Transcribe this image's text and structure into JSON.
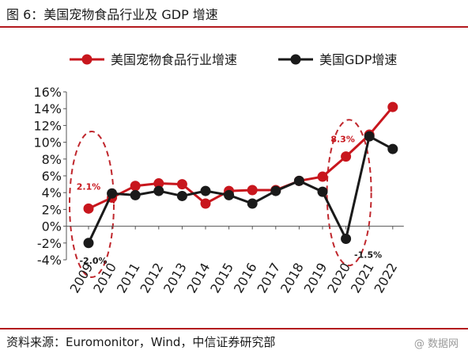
{
  "figure_title": "图 6：美国宠物食品行业及 GDP 增速",
  "source_note": "资料来源：Euromonitor，Wind，中信证券研究部",
  "watermark": "@ 数据网",
  "colors": {
    "pet": "#c8161d",
    "gdp": "#1a1a1a",
    "accent_rule": "#b3191e",
    "highlight": "#c0272d"
  },
  "chart_data": {
    "type": "line",
    "title": "",
    "xlabel": "",
    "ylabel": "",
    "x": [
      "2009",
      "2010",
      "2011",
      "2012",
      "2013",
      "2014",
      "2015",
      "2016",
      "2017",
      "2018",
      "2019",
      "2020",
      "2021",
      "2022"
    ],
    "y_ticks": [
      "16%",
      "14%",
      "12%",
      "10%",
      "8%",
      "6%",
      "4%",
      "2%",
      "0%",
      "-2%",
      "-4%"
    ],
    "ylim": [
      -4,
      16
    ],
    "grid": false,
    "legend_position": "top",
    "series": [
      {
        "name": "美国宠物食品行业增速",
        "color": "#c8161d",
        "values": [
          2.1,
          3.4,
          4.8,
          5.1,
          5.0,
          2.7,
          4.2,
          4.3,
          4.3,
          5.4,
          5.9,
          8.3,
          10.9,
          14.2
        ]
      },
      {
        "name": "美国GDP增速",
        "color": "#1a1a1a",
        "values": [
          -2.0,
          3.9,
          3.7,
          4.2,
          3.6,
          4.2,
          3.7,
          2.7,
          4.2,
          5.4,
          4.1,
          -1.5,
          10.7,
          9.2
        ]
      }
    ],
    "annotations": [
      {
        "text": "2.1%",
        "x": "2009",
        "series": 0,
        "color": "#c8161d"
      },
      {
        "text": "-2.0%",
        "x": "2009",
        "series": 1,
        "color": "#1a1a1a"
      },
      {
        "text": "8.3%",
        "x": "2020",
        "series": 0,
        "color": "#c8161d"
      },
      {
        "text": "-1.5%",
        "x": "2020",
        "series": 1,
        "color": "#1a1a1a"
      }
    ],
    "highlights": [
      {
        "x": "2009"
      },
      {
        "x": "2020"
      }
    ]
  }
}
